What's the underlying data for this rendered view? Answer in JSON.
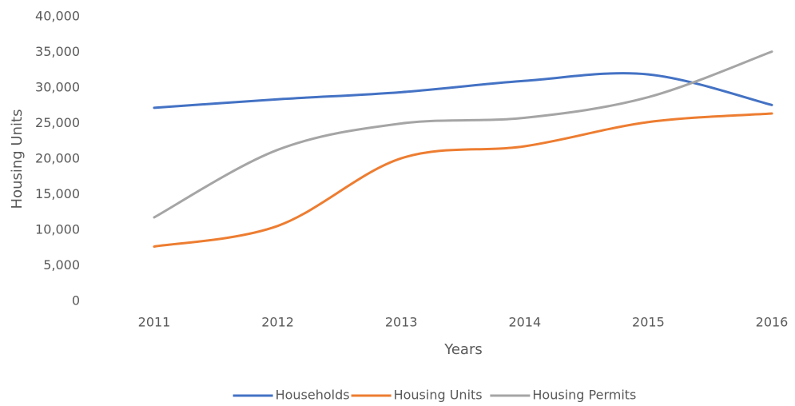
{
  "chart_data": {
    "type": "line",
    "x_label": "Years",
    "y_label": "Housing Units",
    "categories": [
      "2011",
      "2012",
      "2013",
      "2014",
      "2015",
      "2016"
    ],
    "series": [
      {
        "name": "Households",
        "color": "#4472c4",
        "values": [
          27200,
          28400,
          29400,
          31000,
          31900,
          27600
        ]
      },
      {
        "name": "Housing Units",
        "color": "#ed7d31",
        "values": [
          7700,
          10600,
          20100,
          21800,
          25200,
          26400
        ]
      },
      {
        "name": "Housing Permits",
        "color": "#a5a5a5",
        "values": [
          11800,
          21300,
          25000,
          25800,
          28700,
          35100
        ]
      }
    ],
    "smooth": true,
    "ylim": [
      0,
      40000
    ],
    "yticks": [
      0,
      {
        "value": 5000,
        "label": "5,000"
      },
      {
        "value": 10000,
        "label": "10,000"
      },
      {
        "value": 15000,
        "label": "15,000"
      },
      {
        "value": 20000,
        "label": "20,000"
      },
      {
        "value": 25000,
        "label": "25,000"
      },
      {
        "value": 30000,
        "label": "30,000"
      },
      {
        "value": 35000,
        "label": "35,000"
      },
      {
        "value": 40000,
        "label": "40,000"
      }
    ],
    "grid": false,
    "legend": "bottom"
  }
}
